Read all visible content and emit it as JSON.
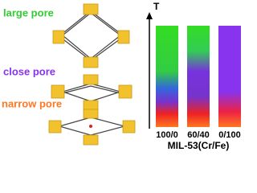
{
  "labels": {
    "large": "large pore",
    "close": "close pore",
    "narrow": "narrow pore"
  },
  "chart": {
    "axis_label": "T",
    "categories": [
      "100/0",
      "60/40",
      "0/100"
    ],
    "title": "MIL-53(Cr/Fe)"
  }
}
